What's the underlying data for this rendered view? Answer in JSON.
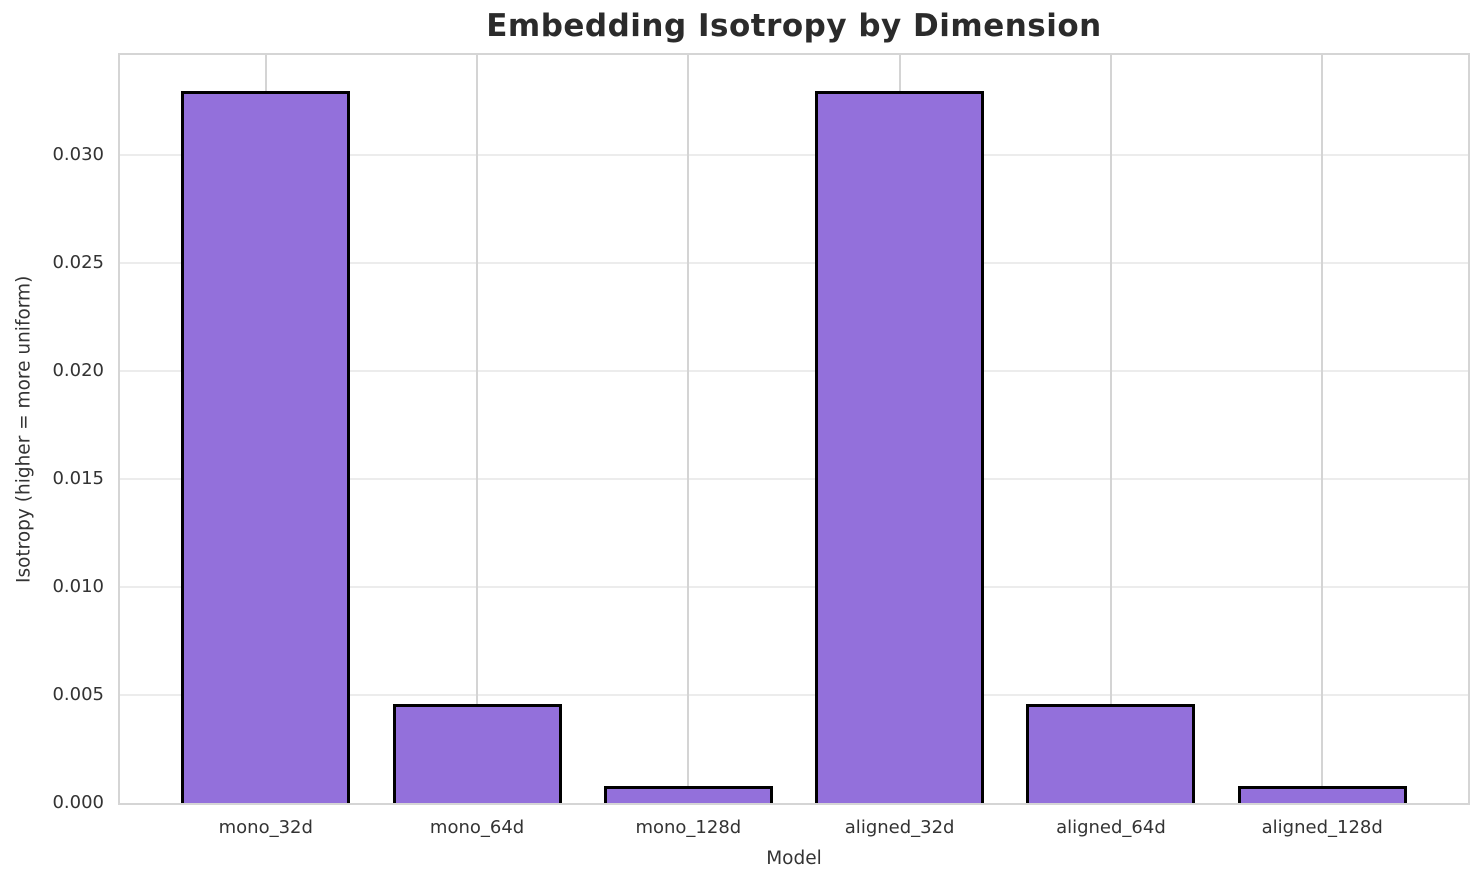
{
  "chart_data": {
    "type": "bar",
    "title": "Embedding Isotropy by Dimension",
    "xlabel": "Model",
    "ylabel": "Isotropy (higher = more uniform)",
    "categories": [
      "mono_32d",
      "mono_64d",
      "mono_128d",
      "aligned_32d",
      "aligned_64d",
      "aligned_128d"
    ],
    "values": [
      0.033,
      0.0046,
      0.0008,
      0.033,
      0.0046,
      0.0008
    ],
    "ylim": [
      0,
      0.03465
    ],
    "yticks": [
      0,
      0.005,
      0.01,
      0.015,
      0.02,
      0.025,
      0.03
    ],
    "ytick_labels": [
      "0.000",
      "0.005",
      "0.010",
      "0.015",
      "0.020",
      "0.025",
      "0.030"
    ],
    "grid": "both",
    "legend": "none",
    "colors": {
      "bar_fill": "#9370DB",
      "bar_edge": "#000000",
      "grid_horizontal": "#ececec",
      "grid_vertical": "#d4d4d4",
      "spine": "#d5d5d5",
      "text": "#333333",
      "title_text": "#2b2b2b",
      "background": "#ffffff"
    }
  }
}
